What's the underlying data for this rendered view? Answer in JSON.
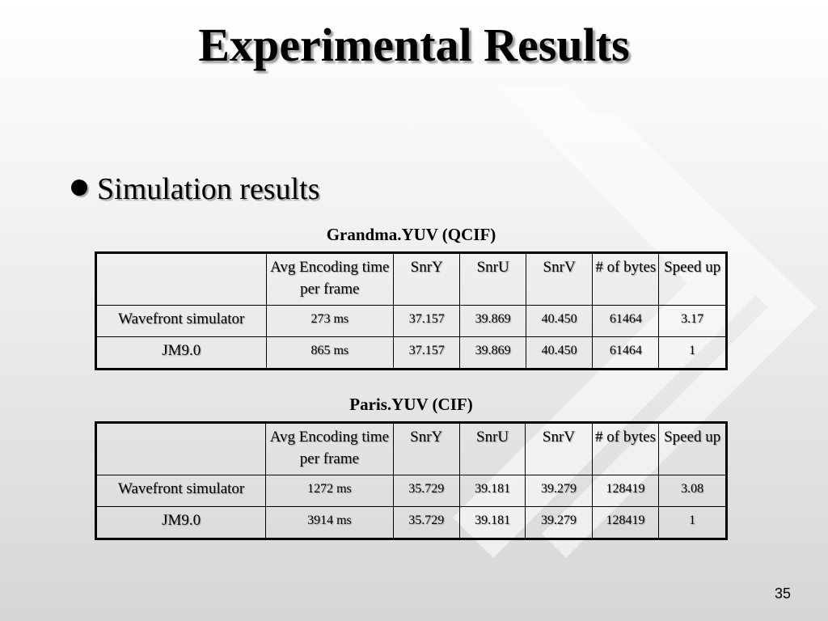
{
  "title": "Experimental Results",
  "bullet": "Simulation results",
  "tables": [
    {
      "caption": "Grandma.YUV (QCIF)",
      "header": [
        "",
        "Avg Encoding time per frame",
        "SnrY",
        "SnrU",
        "SnrV",
        "# of bytes",
        "Speed up"
      ],
      "rows": [
        [
          "Wavefront simulator",
          "273 ms",
          "37.157",
          "39.869",
          "40.450",
          "61464",
          "3.17"
        ],
        [
          "JM9.0",
          "865 ms",
          "37.157",
          "39.869",
          "40.450",
          "61464",
          "1"
        ]
      ]
    },
    {
      "caption": "Paris.YUV (CIF)",
      "header": [
        "",
        "Avg Encoding time per frame",
        "SnrY",
        "SnrU",
        "SnrV",
        "# of bytes",
        "Speed up"
      ],
      "rows": [
        [
          "Wavefront simulator",
          "1272 ms",
          "35.729",
          "39.181",
          "39.279",
          "128419",
          "3.08"
        ],
        [
          "JM9.0",
          "3914 ms",
          "35.729",
          "39.181",
          "39.279",
          "128419",
          "1"
        ]
      ]
    }
  ],
  "page_number": "35"
}
